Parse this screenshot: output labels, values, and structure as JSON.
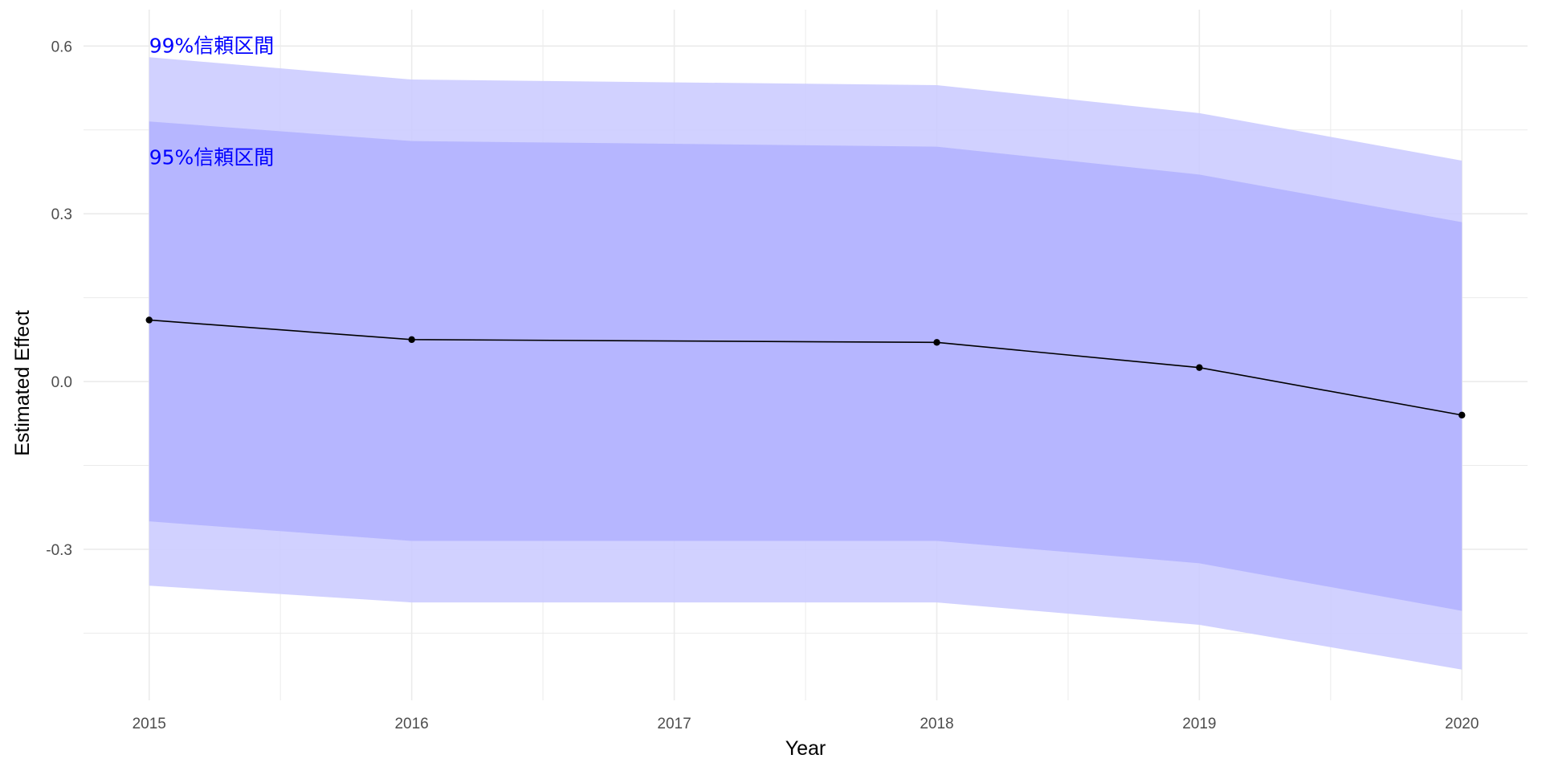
{
  "chart_data": {
    "type": "line",
    "xlabel": "Year",
    "ylabel": "Estimated Effect",
    "x": [
      2015,
      2016,
      2018,
      2019,
      2020
    ],
    "series": [
      {
        "values": [
          0.11,
          0.075,
          0.07,
          0.025,
          -0.06
        ]
      }
    ],
    "bands": [
      {
        "level": "99%",
        "lower": [
          -0.365,
          -0.395,
          -0.395,
          -0.435,
          -0.515
        ],
        "upper": [
          0.58,
          0.54,
          0.53,
          0.48,
          0.395
        ]
      },
      {
        "level": "95%",
        "lower": [
          -0.25,
          -0.285,
          -0.285,
          -0.325,
          -0.41
        ],
        "upper": [
          0.465,
          0.43,
          0.42,
          0.37,
          0.285
        ]
      }
    ],
    "annotations": [
      {
        "text": "99%信頼区間",
        "x": 2015,
        "y": 0.6
      },
      {
        "text": "95%信頼区間",
        "x": 2015,
        "y": 0.4
      }
    ],
    "xticks": [
      2015,
      2016,
      2017,
      2018,
      2019,
      2020
    ],
    "yticks": [
      0.6,
      0.3,
      0.0,
      -0.3
    ],
    "ytick_labels": [
      "0.6",
      "0.3",
      "0.0",
      "-0.3"
    ],
    "xlim": [
      2014.75,
      2020.25
    ],
    "ylim": [
      -0.57,
      0.665
    ],
    "grid": true,
    "colors": {
      "band_99": "#ccccff",
      "band_95": "#b3b3ff",
      "line": "#000000",
      "annotation": "#0000ff",
      "grid": "#ebebeb"
    }
  }
}
